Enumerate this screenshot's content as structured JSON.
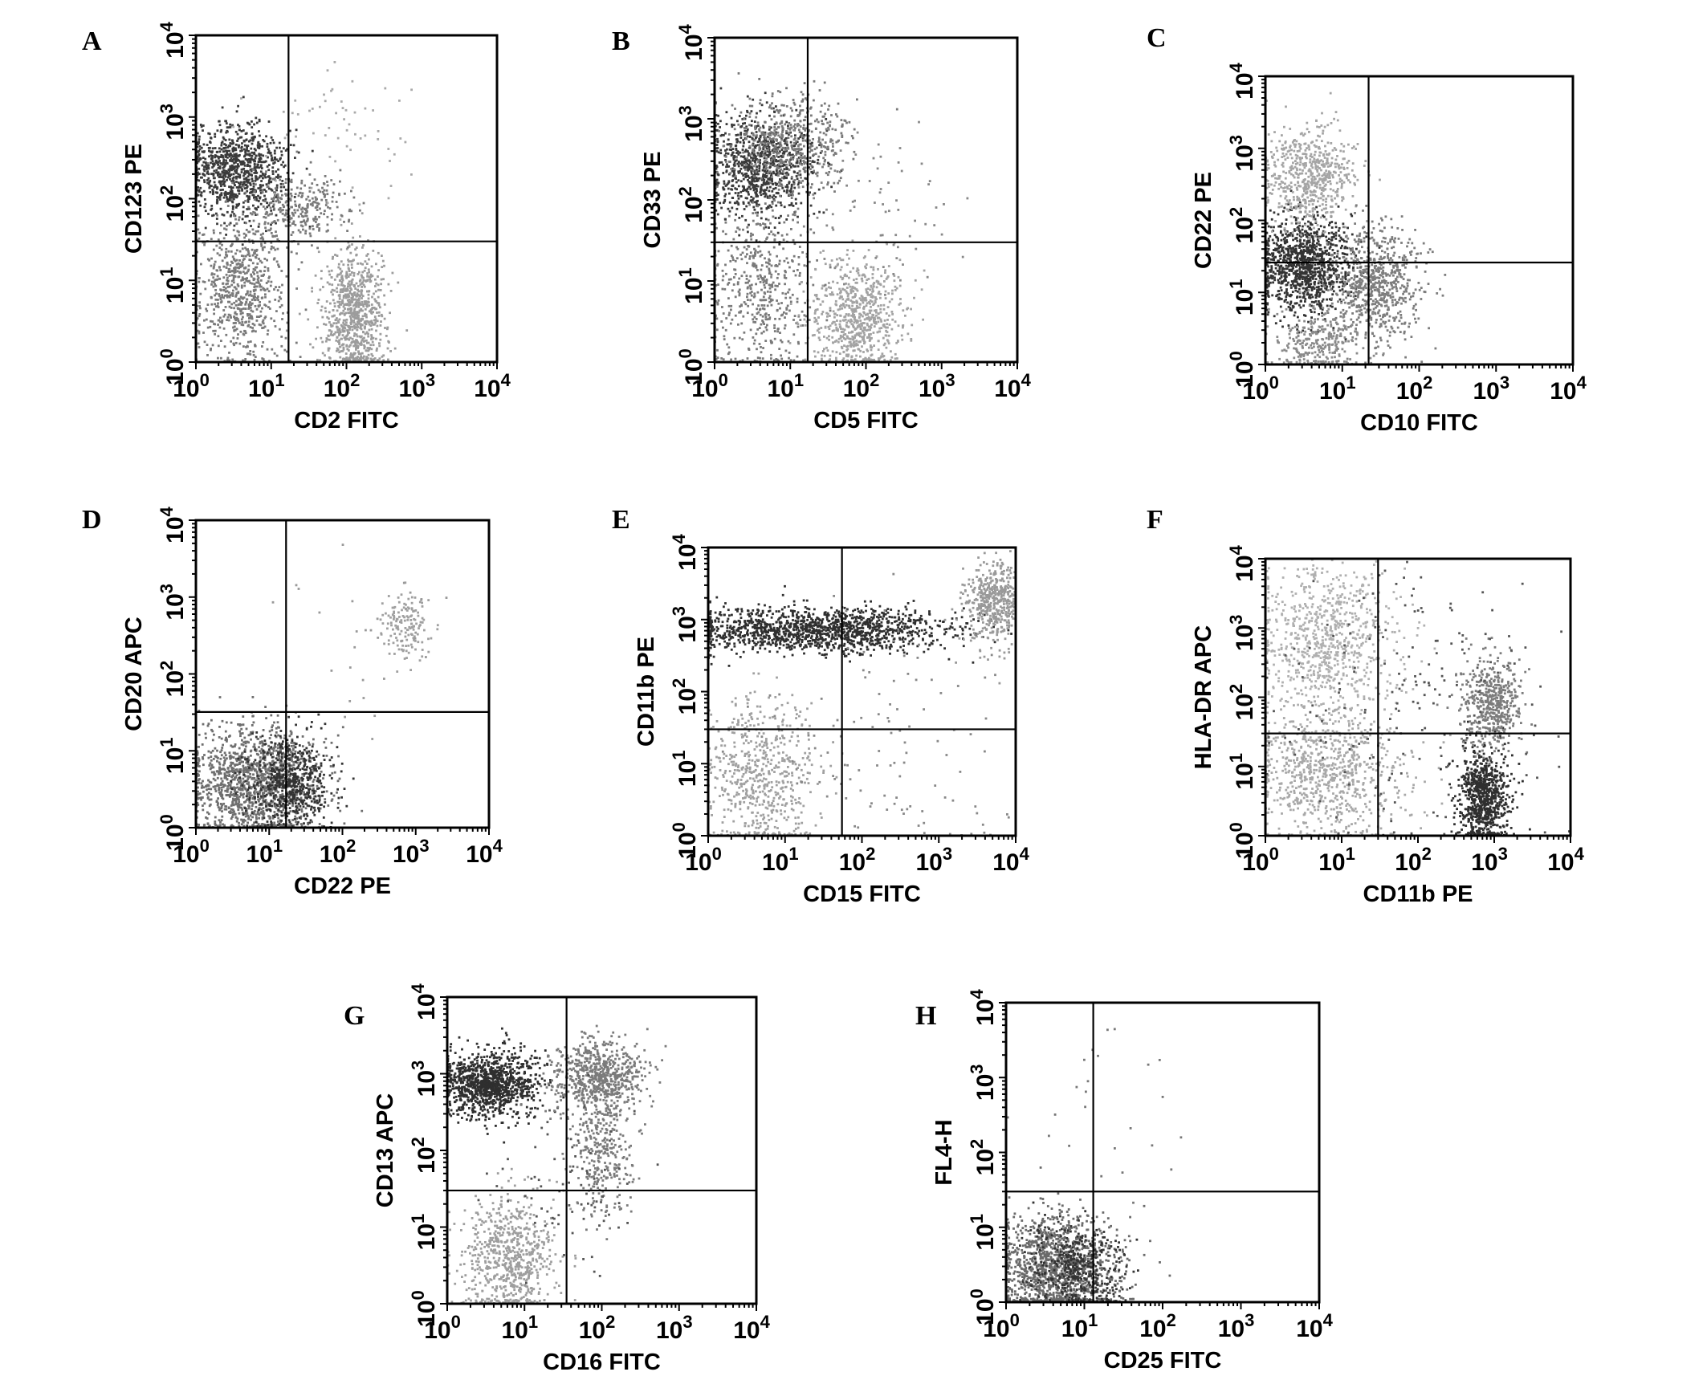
{
  "figure": {
    "panels_rendered": 8
  },
  "chart_data": [
    {
      "id": "A",
      "type": "scatter",
      "letter": "A",
      "xlabel": "CD2 FITC",
      "ylabel": "CD123 PE",
      "xscale": "log",
      "yscale": "log",
      "xlim": [
        1,
        10000
      ],
      "ylim": [
        1,
        10000
      ],
      "xticks": [
        "10^0",
        "10^1",
        "10^2",
        "10^3",
        "10^4"
      ],
      "yticks": [
        "10^0",
        "10^1",
        "10^2",
        "10^3",
        "10^4"
      ],
      "gate": {
        "x": 17,
        "y": 30
      },
      "populations": [
        {
          "name": "dark",
          "color": "#3a3a3a",
          "n": 900,
          "cx": 0.55,
          "cy": 2.35,
          "sx": 0.32,
          "sy": 0.28
        },
        {
          "name": "mid",
          "color": "#7a7a7a",
          "n": 700,
          "cx": 0.6,
          "cy": 0.9,
          "sx": 0.3,
          "sy": 0.45
        },
        {
          "name": "light",
          "color": "#9c9c9c",
          "n": 800,
          "cx": 2.1,
          "cy": 0.6,
          "sx": 0.2,
          "sy": 0.4
        },
        {
          "name": "mid-upper",
          "color": "#7a7a7a",
          "n": 300,
          "cx": 1.4,
          "cy": 1.9,
          "sx": 0.35,
          "sy": 0.2
        },
        {
          "name": "sparse",
          "color": "#aaaaaa",
          "n": 60,
          "cx": 2.0,
          "cy": 2.8,
          "sx": 0.5,
          "sy": 0.4
        }
      ]
    },
    {
      "id": "B",
      "type": "scatter",
      "letter": "B",
      "xlabel": "CD5 FITC",
      "ylabel": "CD33 PE",
      "xscale": "log",
      "yscale": "log",
      "xlim": [
        1,
        10000
      ],
      "ylim": [
        1,
        10000
      ],
      "xticks": [
        "10^0",
        "10^1",
        "10^2",
        "10^3",
        "10^4"
      ],
      "yticks": [
        "10^0",
        "10^1",
        "10^2",
        "10^3",
        "10^4"
      ],
      "gate": {
        "x": 17,
        "y": 30
      },
      "populations": [
        {
          "name": "dark",
          "color": "#3a3a3a",
          "n": 900,
          "cx": 0.6,
          "cy": 2.4,
          "sx": 0.35,
          "sy": 0.3
        },
        {
          "name": "mid-upper",
          "color": "#7a7a7a",
          "n": 500,
          "cx": 1.0,
          "cy": 2.7,
          "sx": 0.4,
          "sy": 0.3
        },
        {
          "name": "mid-lower",
          "color": "#7a7a7a",
          "n": 500,
          "cx": 0.6,
          "cy": 0.9,
          "sx": 0.35,
          "sy": 0.5
        },
        {
          "name": "light",
          "color": "#a3a3a3",
          "n": 700,
          "cx": 1.9,
          "cy": 0.55,
          "sx": 0.3,
          "sy": 0.35
        },
        {
          "name": "sparse",
          "color": "#888888",
          "n": 80,
          "cx": 2.0,
          "cy": 1.8,
          "sx": 0.6,
          "sy": 0.6
        }
      ]
    },
    {
      "id": "C",
      "type": "scatter",
      "letter": "C",
      "xlabel": "CD10 FITC",
      "ylabel": "CD22 PE",
      "xscale": "log",
      "yscale": "log",
      "xlim": [
        1,
        10000
      ],
      "ylim": [
        1,
        10000
      ],
      "xticks": [
        "10^0",
        "10^1",
        "10^2",
        "10^3",
        "10^4"
      ],
      "yticks": [
        "10^0",
        "10^1",
        "10^2",
        "10^3",
        "10^4"
      ],
      "gate": {
        "x": 22,
        "y": 26
      },
      "populations": [
        {
          "name": "dark",
          "color": "#333333",
          "n": 1100,
          "cx": 0.5,
          "cy": 1.4,
          "sx": 0.3,
          "sy": 0.35
        },
        {
          "name": "light-upper",
          "color": "#a5a5a5",
          "n": 600,
          "cx": 0.6,
          "cy": 2.6,
          "sx": 0.3,
          "sy": 0.35
        },
        {
          "name": "mid-right",
          "color": "#7d7d7d",
          "n": 700,
          "cx": 1.45,
          "cy": 1.1,
          "sx": 0.3,
          "sy": 0.4
        },
        {
          "name": "mid-lower",
          "color": "#8a8a8a",
          "n": 300,
          "cx": 0.7,
          "cy": 0.3,
          "sx": 0.3,
          "sy": 0.25
        }
      ]
    },
    {
      "id": "D",
      "type": "scatter",
      "letter": "D",
      "xlabel": "CD22 PE",
      "ylabel": "CD20 APC",
      "xscale": "log",
      "yscale": "log",
      "xlim": [
        1,
        10000
      ],
      "ylim": [
        1,
        10000
      ],
      "xticks": [
        "10^0",
        "10^1",
        "10^2",
        "10^3",
        "10^4"
      ],
      "yticks": [
        "10^0",
        "10^1",
        "10^2",
        "10^3",
        "10^4"
      ],
      "gate": {
        "x": 17,
        "y": 32
      },
      "populations": [
        {
          "name": "mid",
          "color": "#6e6e6e",
          "n": 1300,
          "cx": 0.8,
          "cy": 0.6,
          "sx": 0.45,
          "sy": 0.35
        },
        {
          "name": "dark",
          "color": "#333333",
          "n": 600,
          "cx": 1.3,
          "cy": 0.6,
          "sx": 0.3,
          "sy": 0.3
        },
        {
          "name": "light-upper",
          "color": "#a0a0a0",
          "n": 150,
          "cx": 2.85,
          "cy": 2.6,
          "sx": 0.15,
          "sy": 0.2
        },
        {
          "name": "sparse",
          "color": "#999999",
          "n": 30,
          "cx": 2.5,
          "cy": 2.5,
          "sx": 0.6,
          "sy": 0.6
        }
      ]
    },
    {
      "id": "E",
      "type": "scatter",
      "letter": "E",
      "xlabel": "CD15 FITC",
      "ylabel": "CD11b PE",
      "xscale": "log",
      "yscale": "log",
      "xlim": [
        1,
        10000
      ],
      "ylim": [
        1,
        10000
      ],
      "xticks": [
        "10^0",
        "10^1",
        "10^2",
        "10^3",
        "10^4"
      ],
      "yticks": [
        "10^0",
        "10^1",
        "10^2",
        "10^3",
        "10^4"
      ],
      "gate": {
        "x": 55,
        "y": 30
      },
      "populations": [
        {
          "name": "dark-band",
          "color": "#2f2f2f",
          "n": 1400,
          "cx": 1.4,
          "cy": 2.85,
          "sx": 0.9,
          "sy": 0.15
        },
        {
          "name": "light-right",
          "color": "#999999",
          "n": 500,
          "cx": 3.75,
          "cy": 3.2,
          "sx": 0.2,
          "sy": 0.3
        },
        {
          "name": "light-lower",
          "color": "#a0a0a0",
          "n": 600,
          "cx": 0.7,
          "cy": 0.8,
          "sx": 0.35,
          "sy": 0.55
        },
        {
          "name": "sparse",
          "color": "#888888",
          "n": 120,
          "cx": 2.3,
          "cy": 1.2,
          "sx": 0.9,
          "sy": 0.8
        }
      ]
    },
    {
      "id": "F",
      "type": "scatter",
      "letter": "F",
      "xlabel": "CD11b PE",
      "ylabel": "HLA-DR APC",
      "xscale": "log",
      "yscale": "log",
      "xlim": [
        1,
        10000
      ],
      "ylim": [
        1,
        10000
      ],
      "xticks": [
        "10^0",
        "10^1",
        "10^2",
        "10^3",
        "10^4"
      ],
      "yticks": [
        "10^0",
        "10^1",
        "10^2",
        "10^3",
        "10^4"
      ],
      "gate": {
        "x": 30,
        "y": 30
      },
      "populations": [
        {
          "name": "light-upper-left",
          "color": "#b0b0b0",
          "n": 800,
          "cx": 0.8,
          "cy": 2.8,
          "sx": 0.45,
          "sy": 0.55
        },
        {
          "name": "light-lower-left",
          "color": "#a8a8a8",
          "n": 800,
          "cx": 0.8,
          "cy": 0.9,
          "sx": 0.5,
          "sy": 0.5
        },
        {
          "name": "dark-lower-right",
          "color": "#2f2f2f",
          "n": 800,
          "cx": 2.85,
          "cy": 0.55,
          "sx": 0.17,
          "sy": 0.35
        },
        {
          "name": "mid-upper-right",
          "color": "#7c7c7c",
          "n": 500,
          "cx": 2.95,
          "cy": 1.9,
          "sx": 0.2,
          "sy": 0.35
        },
        {
          "name": "sparse",
          "color": "#555555",
          "n": 200,
          "cx": 2.0,
          "cy": 2.0,
          "sx": 1.0,
          "sy": 1.0
        }
      ]
    },
    {
      "id": "G",
      "type": "scatter",
      "letter": "G",
      "xlabel": "CD16 FITC",
      "ylabel": "CD13 APC",
      "xscale": "log",
      "yscale": "log",
      "xlim": [
        1,
        10000
      ],
      "ylim": [
        1,
        10000
      ],
      "xticks": [
        "10^0",
        "10^1",
        "10^2",
        "10^3",
        "10^4"
      ],
      "yticks": [
        "10^0",
        "10^1",
        "10^2",
        "10^3",
        "10^4"
      ],
      "gate": {
        "x": 35,
        "y": 30
      },
      "populations": [
        {
          "name": "dark",
          "color": "#2f2f2f",
          "n": 1100,
          "cx": 0.55,
          "cy": 2.85,
          "sx": 0.3,
          "sy": 0.22
        },
        {
          "name": "mid-right",
          "color": "#7b7b7b",
          "n": 700,
          "cx": 1.95,
          "cy": 2.95,
          "sx": 0.3,
          "sy": 0.25
        },
        {
          "name": "mid-stream",
          "color": "#7b7b7b",
          "n": 300,
          "cx": 2.0,
          "cy": 2.0,
          "sx": 0.2,
          "sy": 0.4
        },
        {
          "name": "light-lower",
          "color": "#9e9e9e",
          "n": 700,
          "cx": 0.8,
          "cy": 0.6,
          "sx": 0.3,
          "sy": 0.4
        },
        {
          "name": "sparse",
          "color": "#555555",
          "n": 80,
          "cx": 1.5,
          "cy": 1.6,
          "sx": 0.5,
          "sy": 0.6
        }
      ]
    },
    {
      "id": "H",
      "type": "scatter",
      "letter": "H",
      "xlabel": "CD25 FITC",
      "ylabel": "FL4-H",
      "xscale": "log",
      "yscale": "log",
      "xlim": [
        1,
        10000
      ],
      "ylim": [
        1,
        10000
      ],
      "xticks": [
        "10^0",
        "10^1",
        "10^2",
        "10^3",
        "10^4"
      ],
      "yticks": [
        "10^0",
        "10^1",
        "10^2",
        "10^3",
        "10^4"
      ],
      "gate": {
        "x": 13,
        "y": 30
      },
      "populations": [
        {
          "name": "mid",
          "color": "#6a6a6a",
          "n": 1300,
          "cx": 0.65,
          "cy": 0.45,
          "sx": 0.38,
          "sy": 0.35
        },
        {
          "name": "dark",
          "color": "#333333",
          "n": 400,
          "cx": 0.95,
          "cy": 0.45,
          "sx": 0.3,
          "sy": 0.3
        },
        {
          "name": "sparse",
          "color": "#777777",
          "n": 25,
          "cx": 1.3,
          "cy": 2.5,
          "sx": 0.5,
          "sy": 0.6
        }
      ]
    }
  ]
}
